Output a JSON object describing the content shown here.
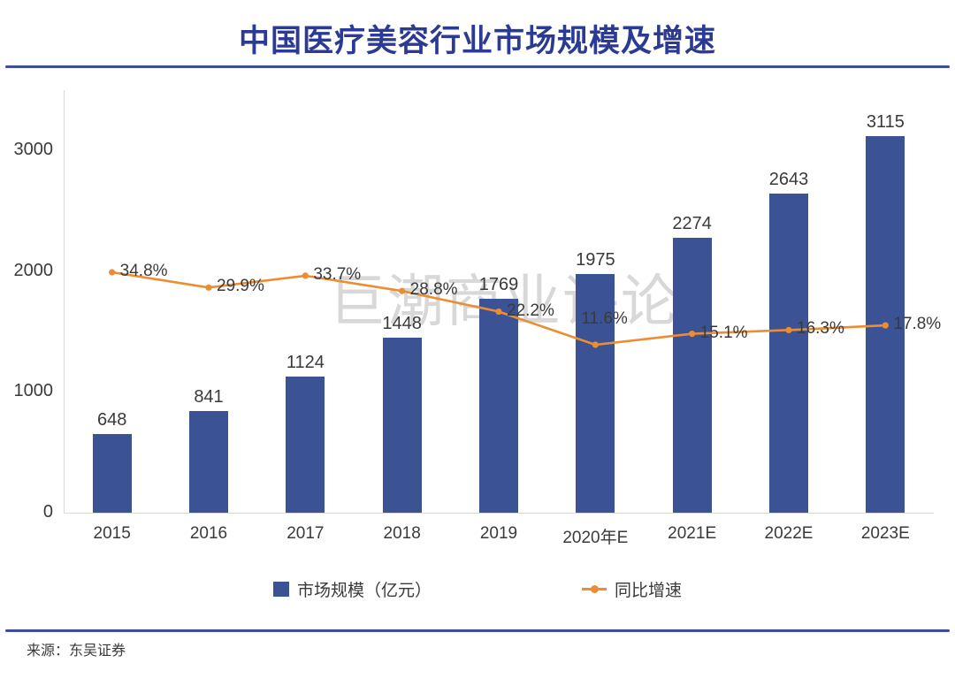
{
  "header": {
    "title": "中国医疗美容行业市场规模及增速"
  },
  "watermark": {
    "text": "巨潮商业评论"
  },
  "footer": {
    "source": "来源：东吴证券"
  },
  "colors": {
    "title": "#2B3A94",
    "divider": "#3E4CA3",
    "bar": "#3B5394",
    "line": "#EE8C32",
    "axis": "#D9D9D9",
    "text": "#3A3A3A",
    "watermark": "#D8D8D8"
  },
  "chart_data": {
    "type": "bar",
    "combo": "bar+line",
    "title": "中国医疗美容行业市场规模及增速",
    "categories": [
      "2015",
      "2016",
      "2017",
      "2018",
      "2019",
      "2020年E",
      "2021E",
      "2022E",
      "2023E"
    ],
    "series": [
      {
        "name": "市场规模（亿元）",
        "type": "bar",
        "values": [
          648,
          841,
          1124,
          1448,
          1769,
          1975,
          2274,
          2643,
          3115
        ],
        "labels": [
          "648",
          "841",
          "1124",
          "1448",
          "1769",
          "1975",
          "2274",
          "2643",
          "3115"
        ]
      },
      {
        "name": "同比增速",
        "type": "line",
        "values": [
          34.8,
          29.9,
          33.7,
          28.8,
          22.2,
          11.6,
          15.1,
          16.3,
          17.8
        ],
        "labels": [
          "34.8%",
          "29.9%",
          "33.7%",
          "28.8%",
          "22.2%",
          "11.6%",
          "15.1%",
          "16.3%",
          "17.8%"
        ]
      }
    ],
    "y_axis": {
      "ticks": [
        0,
        1000,
        2000,
        3000
      ],
      "min": 0,
      "max": 3500
    },
    "y2_axis": {
      "visible": false
    },
    "grid": false,
    "legend_position": "bottom",
    "xlabel": "",
    "ylabel": ""
  }
}
